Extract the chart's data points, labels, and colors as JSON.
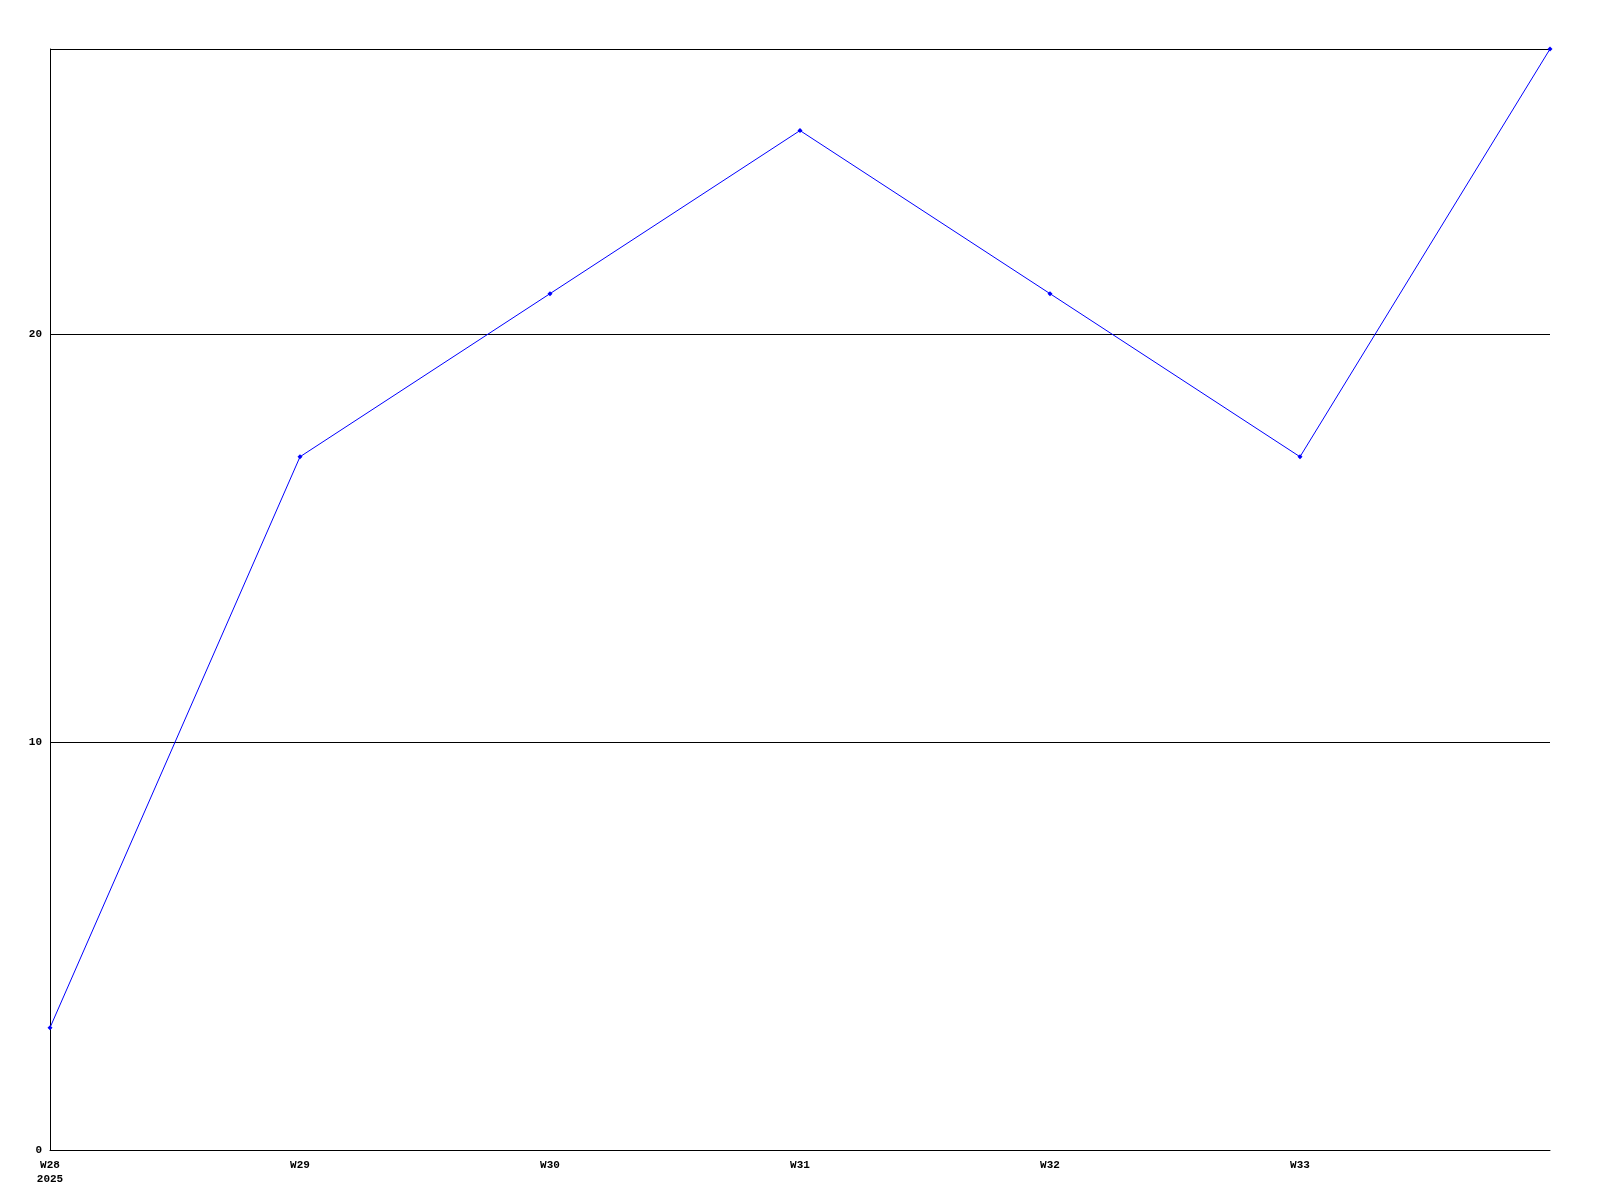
{
  "chart_data": {
    "type": "line",
    "categories": [
      "W28\n2025",
      "W29",
      "W30",
      "W31",
      "W32",
      "W33",
      null
    ],
    "series": [
      {
        "color": "#0000ff",
        "values": [
          3,
          17,
          21,
          25,
          21,
          17,
          27
        ]
      }
    ],
    "ylim": [
      0,
      27
    ],
    "yticks": [
      0,
      10,
      20
    ],
    "grid": "y",
    "marker": "diamond",
    "line_style": "solid"
  }
}
